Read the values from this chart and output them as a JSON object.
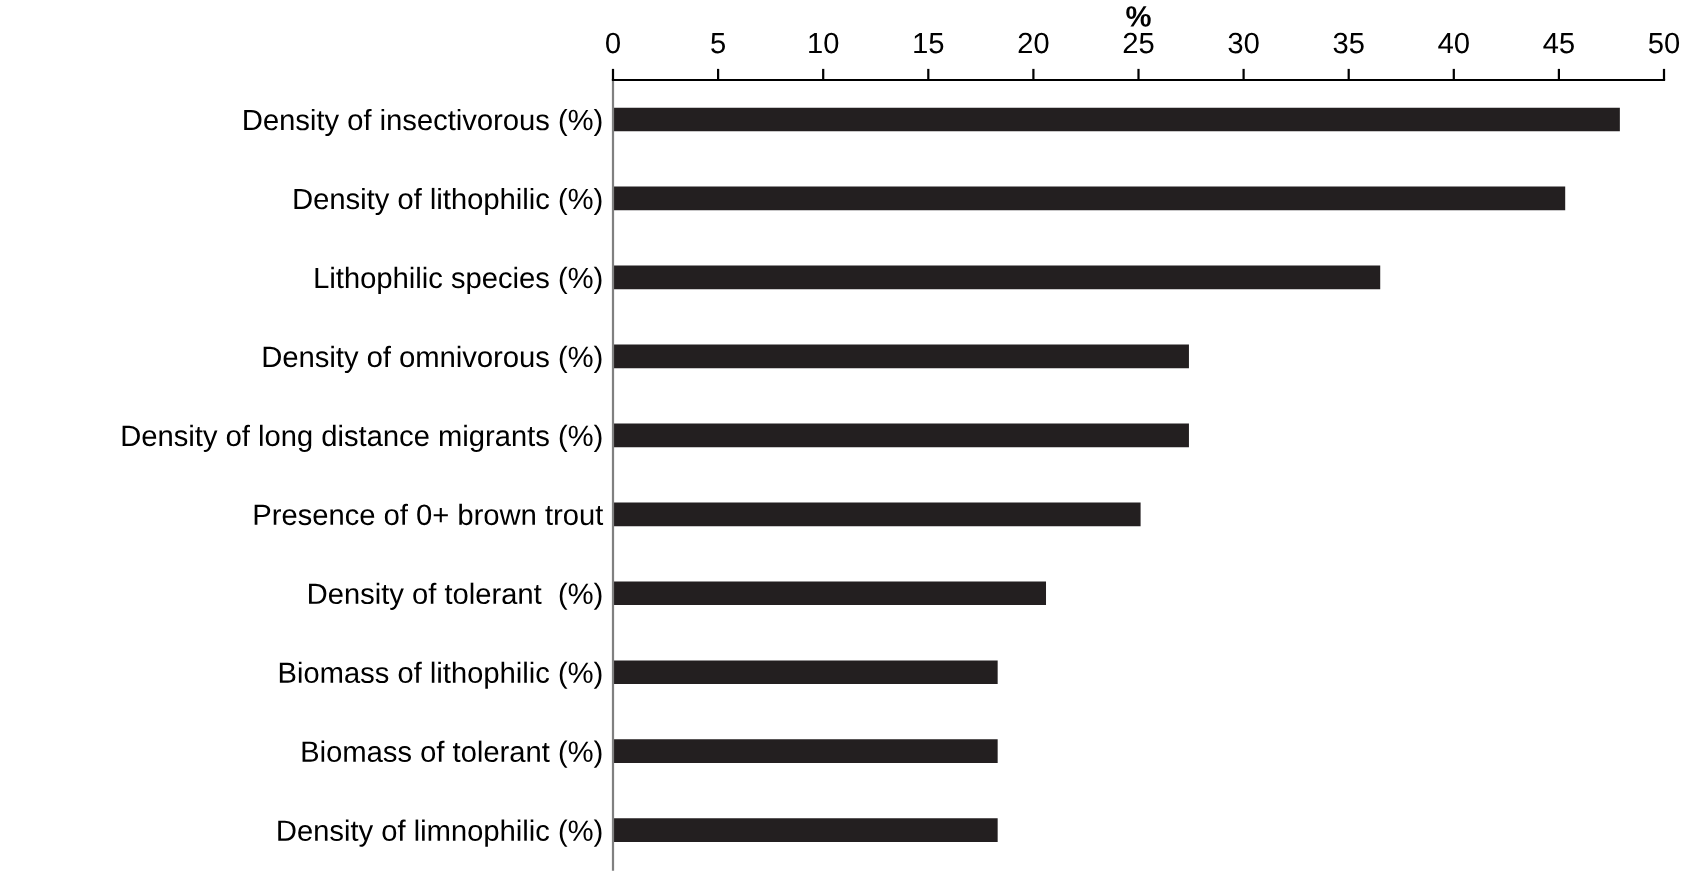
{
  "chart_data": {
    "type": "bar",
    "orientation": "horizontal",
    "xlabel": "%",
    "categories": [
      "Density of insectivorous (%)",
      "Density of lithophilic (%)",
      "Lithophilic species (%)",
      "Density of omnivorous (%)",
      "Density of long distance migrants (%)",
      "Presence of 0+ brown trout",
      "Density of tolerant  (%)",
      "Biomass of lithophilic (%)",
      "Biomass of tolerant (%)",
      "Density of limnophilic (%)"
    ],
    "values": [
      47.9,
      45.3,
      36.5,
      27.4,
      27.4,
      25.1,
      20.6,
      18.3,
      18.3,
      18.3
    ],
    "color": "#231f20",
    "xlim": [
      0,
      50
    ],
    "xticks": [
      0,
      5,
      10,
      15,
      20,
      25,
      30,
      35,
      40,
      45,
      50
    ],
    "grid": false,
    "legend": false
  }
}
